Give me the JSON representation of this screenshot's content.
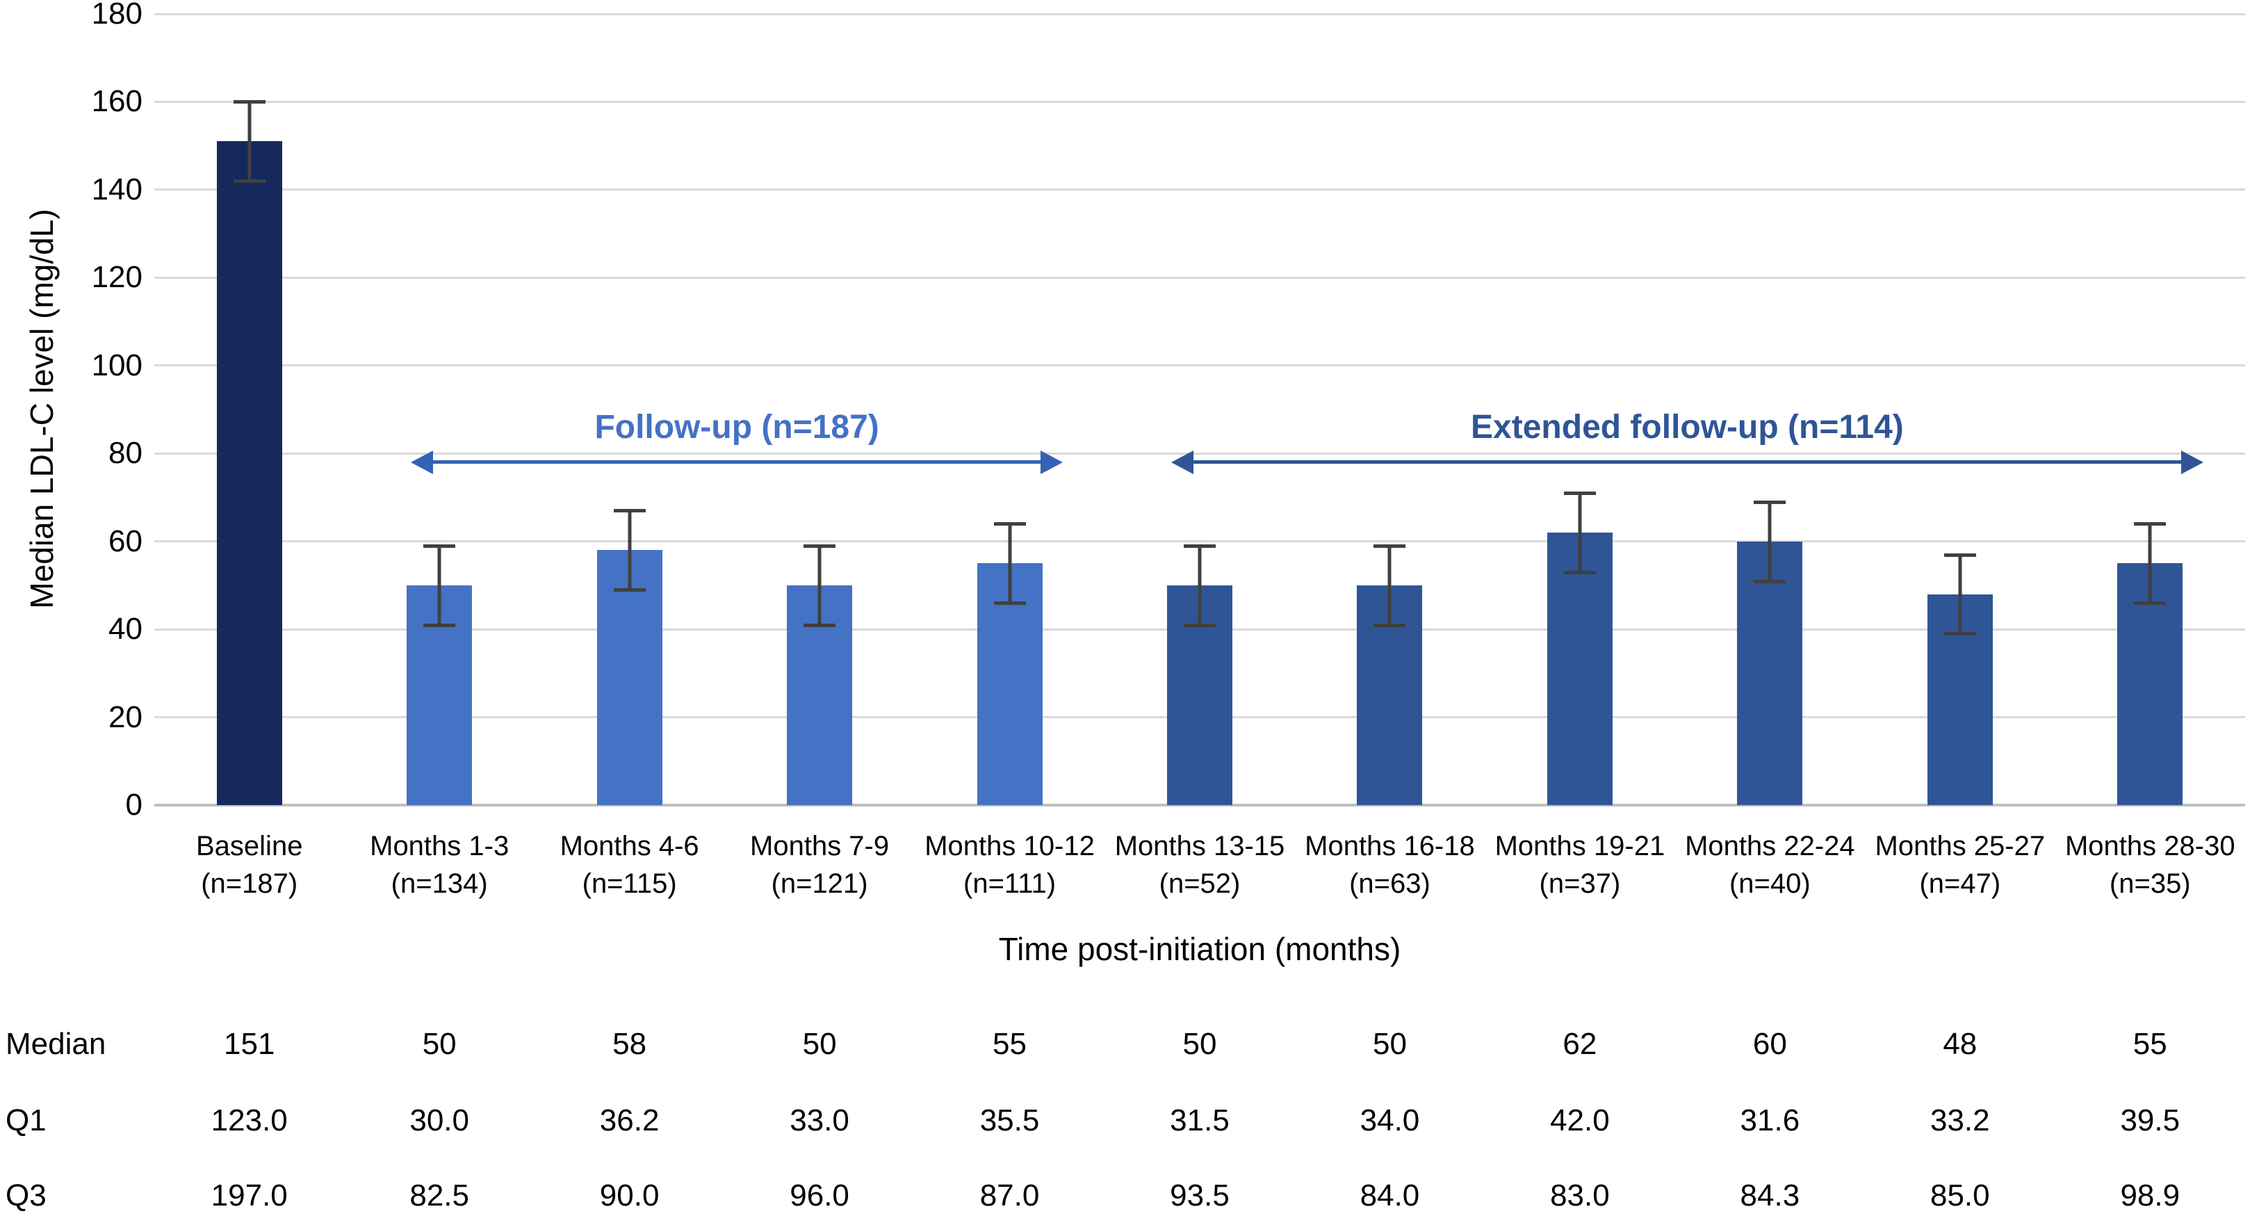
{
  "chart_data": {
    "type": "bar",
    "ylabel": "Median LDL-C level (mg/dL)",
    "xlabel": "Time post-initiation (months)",
    "ylim": [
      0,
      180
    ],
    "ytick_step": 20,
    "yticks": [
      0,
      20,
      40,
      60,
      80,
      100,
      120,
      140,
      160,
      180
    ],
    "grid": "horizontal",
    "colors": {
      "baseline": "#16295f",
      "followup": "#4472c4",
      "extended": "#2f5597",
      "error_bar": "#404040",
      "gridline": "#d9d9d9",
      "axis_line": "#bfbfbf"
    },
    "bars": [
      {
        "label": "Baseline",
        "n_label": "(n=187)",
        "group": "baseline",
        "median": 151,
        "q1": "123.0",
        "q3": "197.0",
        "whisker_low": 142,
        "whisker_high": 160
      },
      {
        "label": "Months 1-3",
        "n_label": "(n=134)",
        "group": "followup",
        "median": 50,
        "q1": "30.0",
        "q3": "82.5",
        "whisker_low": 41,
        "whisker_high": 59
      },
      {
        "label": "Months 4-6",
        "n_label": "(n=115)",
        "group": "followup",
        "median": 58,
        "q1": "36.2",
        "q3": "90.0",
        "whisker_low": 49,
        "whisker_high": 67
      },
      {
        "label": "Months 7-9",
        "n_label": "(n=121)",
        "group": "followup",
        "median": 50,
        "q1": "33.0",
        "q3": "96.0",
        "whisker_low": 41,
        "whisker_high": 59
      },
      {
        "label": "Months 10-12",
        "n_label": "(n=111)",
        "group": "followup",
        "median": 55,
        "q1": "35.5",
        "q3": "87.0",
        "whisker_low": 46,
        "whisker_high": 64
      },
      {
        "label": "Months 13-15",
        "n_label": "(n=52)",
        "group": "extended",
        "median": 50,
        "q1": "31.5",
        "q3": "93.5",
        "whisker_low": 41,
        "whisker_high": 59
      },
      {
        "label": "Months 16-18",
        "n_label": "(n=63)",
        "group": "extended",
        "median": 50,
        "q1": "34.0",
        "q3": "84.0",
        "whisker_low": 41,
        "whisker_high": 59
      },
      {
        "label": "Months 19-21",
        "n_label": "(n=37)",
        "group": "extended",
        "median": 62,
        "q1": "42.0",
        "q3": "83.0",
        "whisker_low": 53,
        "whisker_high": 71
      },
      {
        "label": "Months 22-24",
        "n_label": "(n=40)",
        "group": "extended",
        "median": 60,
        "q1": "31.6",
        "q3": "84.3",
        "whisker_low": 51,
        "whisker_high": 69
      },
      {
        "label": "Months 25-27",
        "n_label": "(n=47)",
        "group": "extended",
        "median": 48,
        "q1": "33.2",
        "q3": "85.0",
        "whisker_low": 39,
        "whisker_high": 57
      },
      {
        "label": "Months 28-30",
        "n_label": "(n=35)",
        "group": "extended",
        "median": 55,
        "q1": "39.5",
        "q3": "98.9",
        "whisker_low": 46,
        "whisker_high": 64
      }
    ],
    "annotations": [
      {
        "label": "Follow-up (n=187)",
        "text_color": "#4472c4",
        "arrow_color": "#3463b5",
        "col_start": 1,
        "col_end": 4,
        "y_value": 78
      },
      {
        "label": "Extended follow-up (n=114)",
        "text_color": "#2f5597",
        "arrow_color": "#2f5597",
        "col_start": 5,
        "col_end": 10,
        "y_value": 78
      }
    ],
    "table": {
      "rows": [
        {
          "label": "Median",
          "values": [
            "151",
            "50",
            "58",
            "50",
            "55",
            "50",
            "50",
            "62",
            "60",
            "48",
            "55"
          ]
        },
        {
          "label": "Q1",
          "values": [
            "123.0",
            "30.0",
            "36.2",
            "33.0",
            "35.5",
            "31.5",
            "34.0",
            "42.0",
            "31.6",
            "33.2",
            "39.5"
          ]
        },
        {
          "label": "Q3",
          "values": [
            "197.0",
            "82.5",
            "90.0",
            "96.0",
            "87.0",
            "93.5",
            "84.0",
            "83.0",
            "84.3",
            "85.0",
            "98.9"
          ]
        }
      ]
    }
  }
}
